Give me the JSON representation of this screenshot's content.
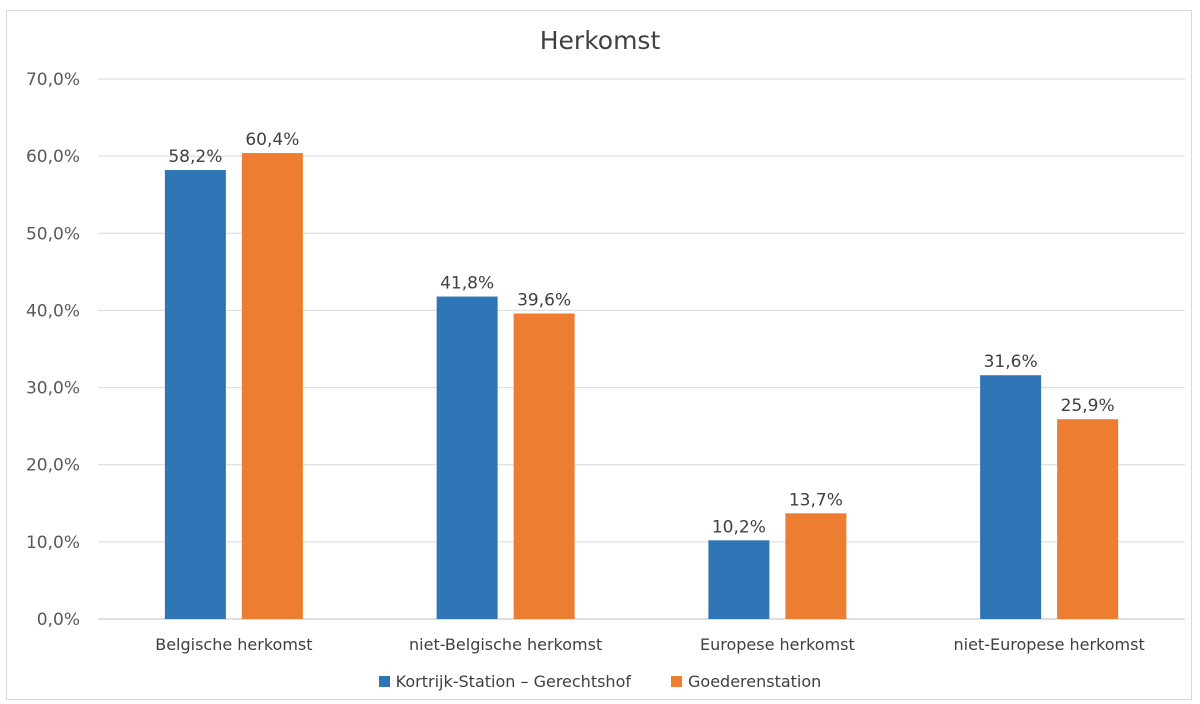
{
  "chart_data": {
    "type": "bar",
    "title": "Herkomst",
    "categories": [
      "Belgische herkomst",
      "niet-Belgische herkomst",
      "Europese herkomst",
      "niet-Europese herkomst"
    ],
    "series": [
      {
        "name": "Kortrijk-Station – Gerechtshof",
        "values": [
          58.2,
          41.8,
          10.2,
          31.6
        ],
        "labels": [
          "58,2%",
          "41,8%",
          "10,2%",
          "31,6%"
        ],
        "color": "#2e75b6"
      },
      {
        "name": "Goederenstation",
        "values": [
          60.4,
          39.6,
          13.7,
          25.9
        ],
        "labels": [
          "60,4%",
          "39,6%",
          "13,7%",
          "25,9%"
        ],
        "color": "#ed7d31"
      }
    ],
    "ylim": [
      0,
      70
    ],
    "yticks": [
      "0,0%",
      "10,0%",
      "20,0%",
      "30,0%",
      "40,0%",
      "50,0%",
      "60,0%",
      "70,0%"
    ],
    "grid": true,
    "legend_position": "bottom"
  }
}
